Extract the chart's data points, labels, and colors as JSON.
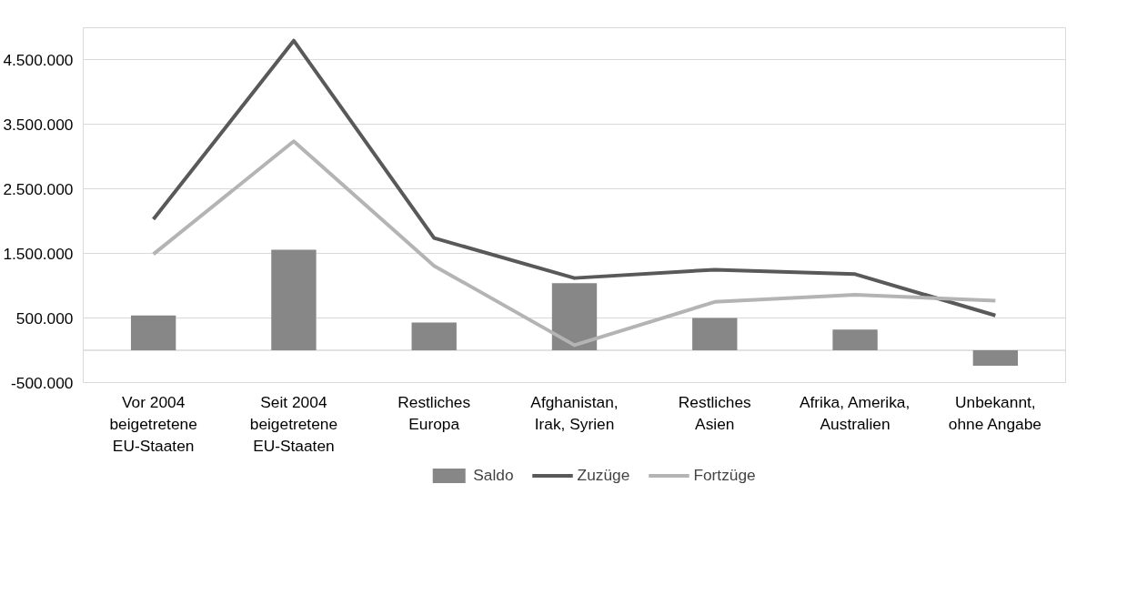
{
  "chart_data": {
    "type": "bar",
    "categories": [
      "Vor 2004\nbeigetretene\nEU-Staaten",
      "Seit 2004\nbeigetretene\nEU-Staaten",
      "Restliches\nEuropa",
      "Afghanistan,\nIrak, Syrien",
      "Restliches\nAsien",
      "Afrika, Amerika,\nAustralien",
      "Unbekannt,\nohne Angabe"
    ],
    "series": [
      {
        "name": "Saldo",
        "color": "#878787",
        "values": [
          540000,
          1560000,
          430000,
          1040000,
          500000,
          320000,
          -240000
        ]
      },
      {
        "name": "Zuzüge",
        "type": "line",
        "color": "#595959",
        "values": [
          2030000,
          4800000,
          1740000,
          1120000,
          1250000,
          1180000,
          540000
        ]
      },
      {
        "name": "Fortzüge",
        "type": "line",
        "color": "#b4b4b4",
        "values": [
          1490000,
          3240000,
          1310000,
          80000,
          750000,
          860000,
          770000
        ]
      }
    ],
    "ylim": [
      -500000,
      5000000
    ],
    "yticks": [
      {
        "value": -500000,
        "label": "-500.000"
      },
      {
        "value": 500000,
        "label": "500.000"
      },
      {
        "value": 1500000,
        "label": "1.500.000"
      },
      {
        "value": 2500000,
        "label": "2.500.000"
      },
      {
        "value": 3500000,
        "label": "3.500.000"
      },
      {
        "value": 4500000,
        "label": "4.500.000"
      }
    ],
    "ref_lines": [
      {
        "axis": "y",
        "value": 0,
        "color": "#d9d9d9"
      }
    ],
    "grid": "y",
    "legend": "bottom",
    "marker": "none",
    "line_style": "solid"
  }
}
